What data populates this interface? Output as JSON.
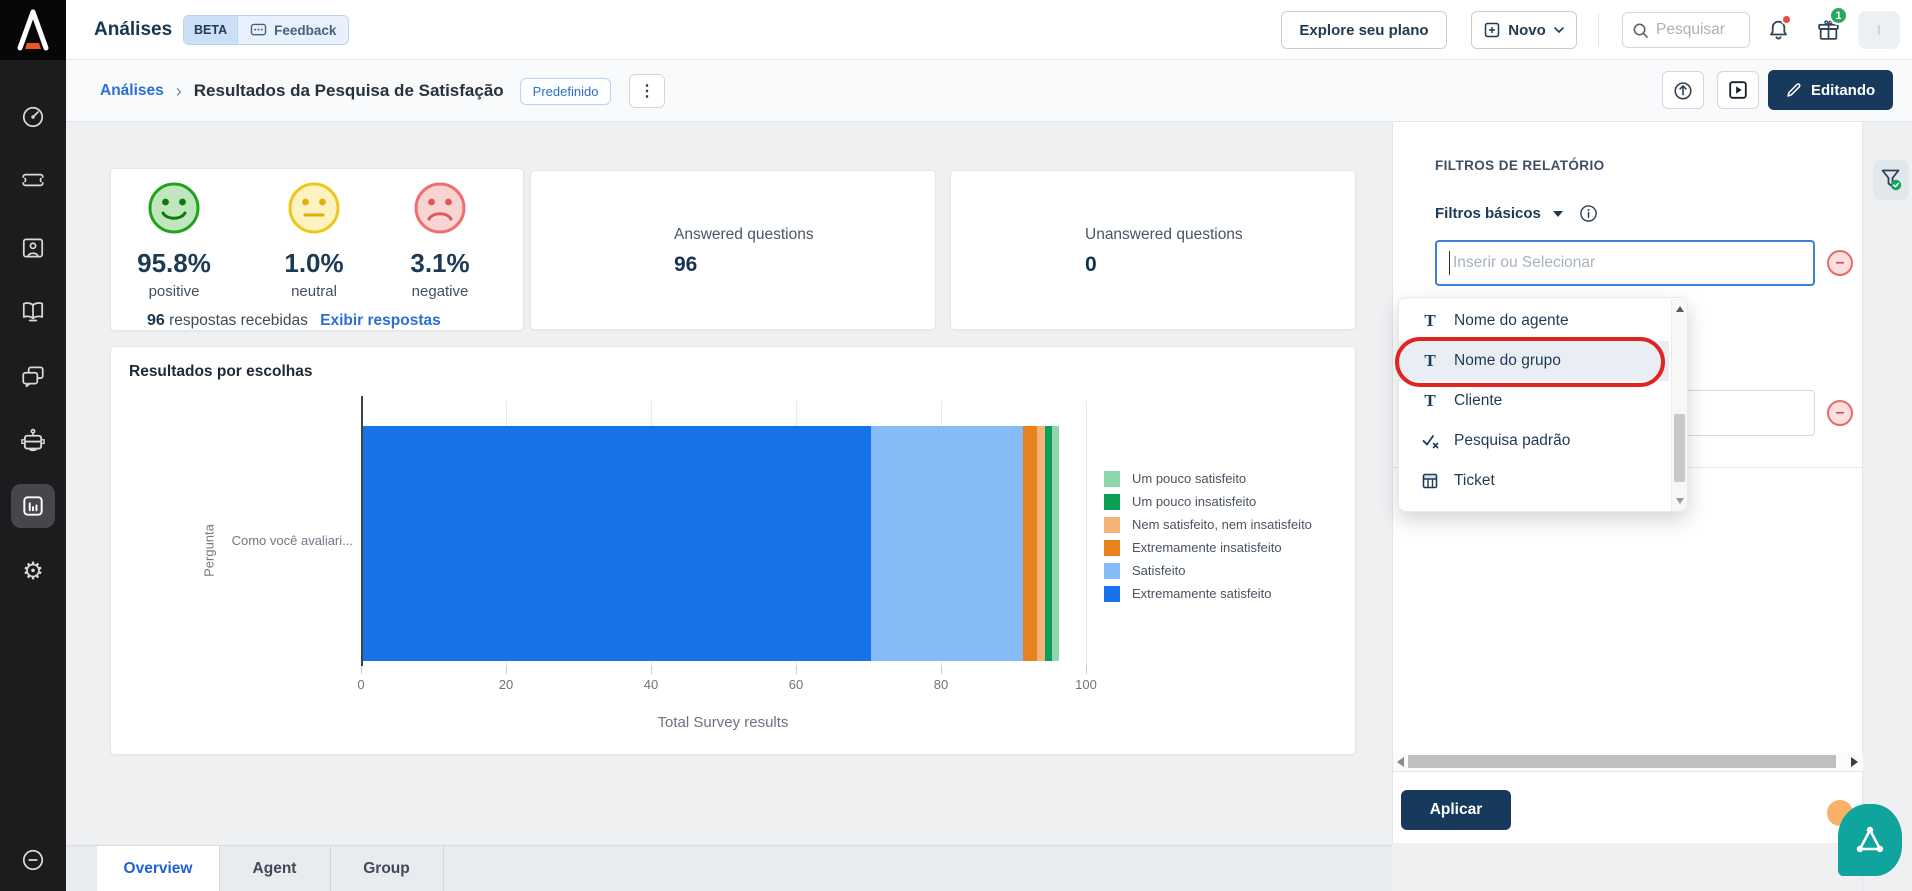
{
  "header": {
    "app_title": "Análises",
    "beta_badge": "BETA",
    "feedback_label": "Feedback",
    "explore_button": "Explore seu plano",
    "new_button": "Novo",
    "search_placeholder": "Pesquisar",
    "gift_badge_count": "1",
    "avatar_label": "I"
  },
  "breadcrumb": {
    "root": "Análises",
    "separator": "›",
    "current": "Resultados da Pesquisa de Satisfação",
    "badge": "Predefinido",
    "editing_button": "Editando"
  },
  "sidebar": {
    "items": [
      "dashboard-icon",
      "ticket-icon",
      "contacts-icon",
      "knowledge-base-icon",
      "chats-icon",
      "bot-icon",
      "analytics-icon",
      "settings-icon",
      "help-icon"
    ],
    "active_item": "analytics-icon"
  },
  "metrics": {
    "positive": {
      "value": "95.8%",
      "label": "positive"
    },
    "neutral": {
      "value": "1.0%",
      "label": "neutral"
    },
    "negative": {
      "value": "3.1%",
      "label": "negative"
    },
    "responses_count": "96",
    "responses_label": "respostas recebidas",
    "responses_link": "Exibir respostas",
    "answered": {
      "label": "Answered questions",
      "value": "96"
    },
    "unanswered": {
      "label": "Unanswered questions",
      "value": "0"
    }
  },
  "chart_data": {
    "type": "bar",
    "orientation": "horizontal",
    "stacked": true,
    "title": "Resultados por escolhas",
    "categories": [
      "Como você avaliari..."
    ],
    "ylabel": "Pergunta",
    "xlabel": "Total Survey results",
    "xlim": [
      0,
      100
    ],
    "xticks": [
      0,
      20,
      40,
      60,
      80,
      100
    ],
    "grid": true,
    "legend_position": "right",
    "series": [
      {
        "name": "Extremamente satisfeito",
        "color": "#1674e8",
        "values": [
          70
        ]
      },
      {
        "name": "Satisfeito",
        "color": "#85bbf7",
        "values": [
          21
        ]
      },
      {
        "name": "Extremamente insatisfeito",
        "color": "#e8821f",
        "values": [
          2
        ]
      },
      {
        "name": "Nem satisfeito, nem insatisfeito",
        "color": "#f3b278",
        "values": [
          1
        ]
      },
      {
        "name": "Um pouco insatisfeito",
        "color": "#0a9e56",
        "values": [
          1
        ]
      },
      {
        "name": "Um pouco satisfeito",
        "color": "#8ed6ab",
        "values": [
          1
        ]
      }
    ],
    "legend_order": [
      "Um pouco satisfeito",
      "Um pouco insatisfeito",
      "Nem satisfeito, nem insatisfeito",
      "Extremamente insatisfeito",
      "Satisfeito",
      "Extremamente satisfeito"
    ]
  },
  "filters_panel": {
    "title": "FILTROS DE RELATÓRIO",
    "section_label": "Filtros básicos",
    "input_placeholder": "Inserir ou Selecionar",
    "dropdown_items": [
      {
        "label": "Nome do agente",
        "icon": "text-type-icon",
        "highlighted": false
      },
      {
        "label": "Nome do grupo",
        "icon": "text-type-icon",
        "highlighted": true
      },
      {
        "label": "Cliente",
        "icon": "text-type-icon",
        "highlighted": false
      },
      {
        "label": "Pesquisa padrão",
        "icon": "check-x-icon",
        "highlighted": false
      },
      {
        "label": "Ticket",
        "icon": "table-icon",
        "highlighted": false
      }
    ],
    "apply_button": "Aplicar"
  },
  "tabs": [
    {
      "label": "Overview",
      "active": true
    },
    {
      "label": "Agent",
      "active": false
    },
    {
      "label": "Group",
      "active": false
    }
  ]
}
